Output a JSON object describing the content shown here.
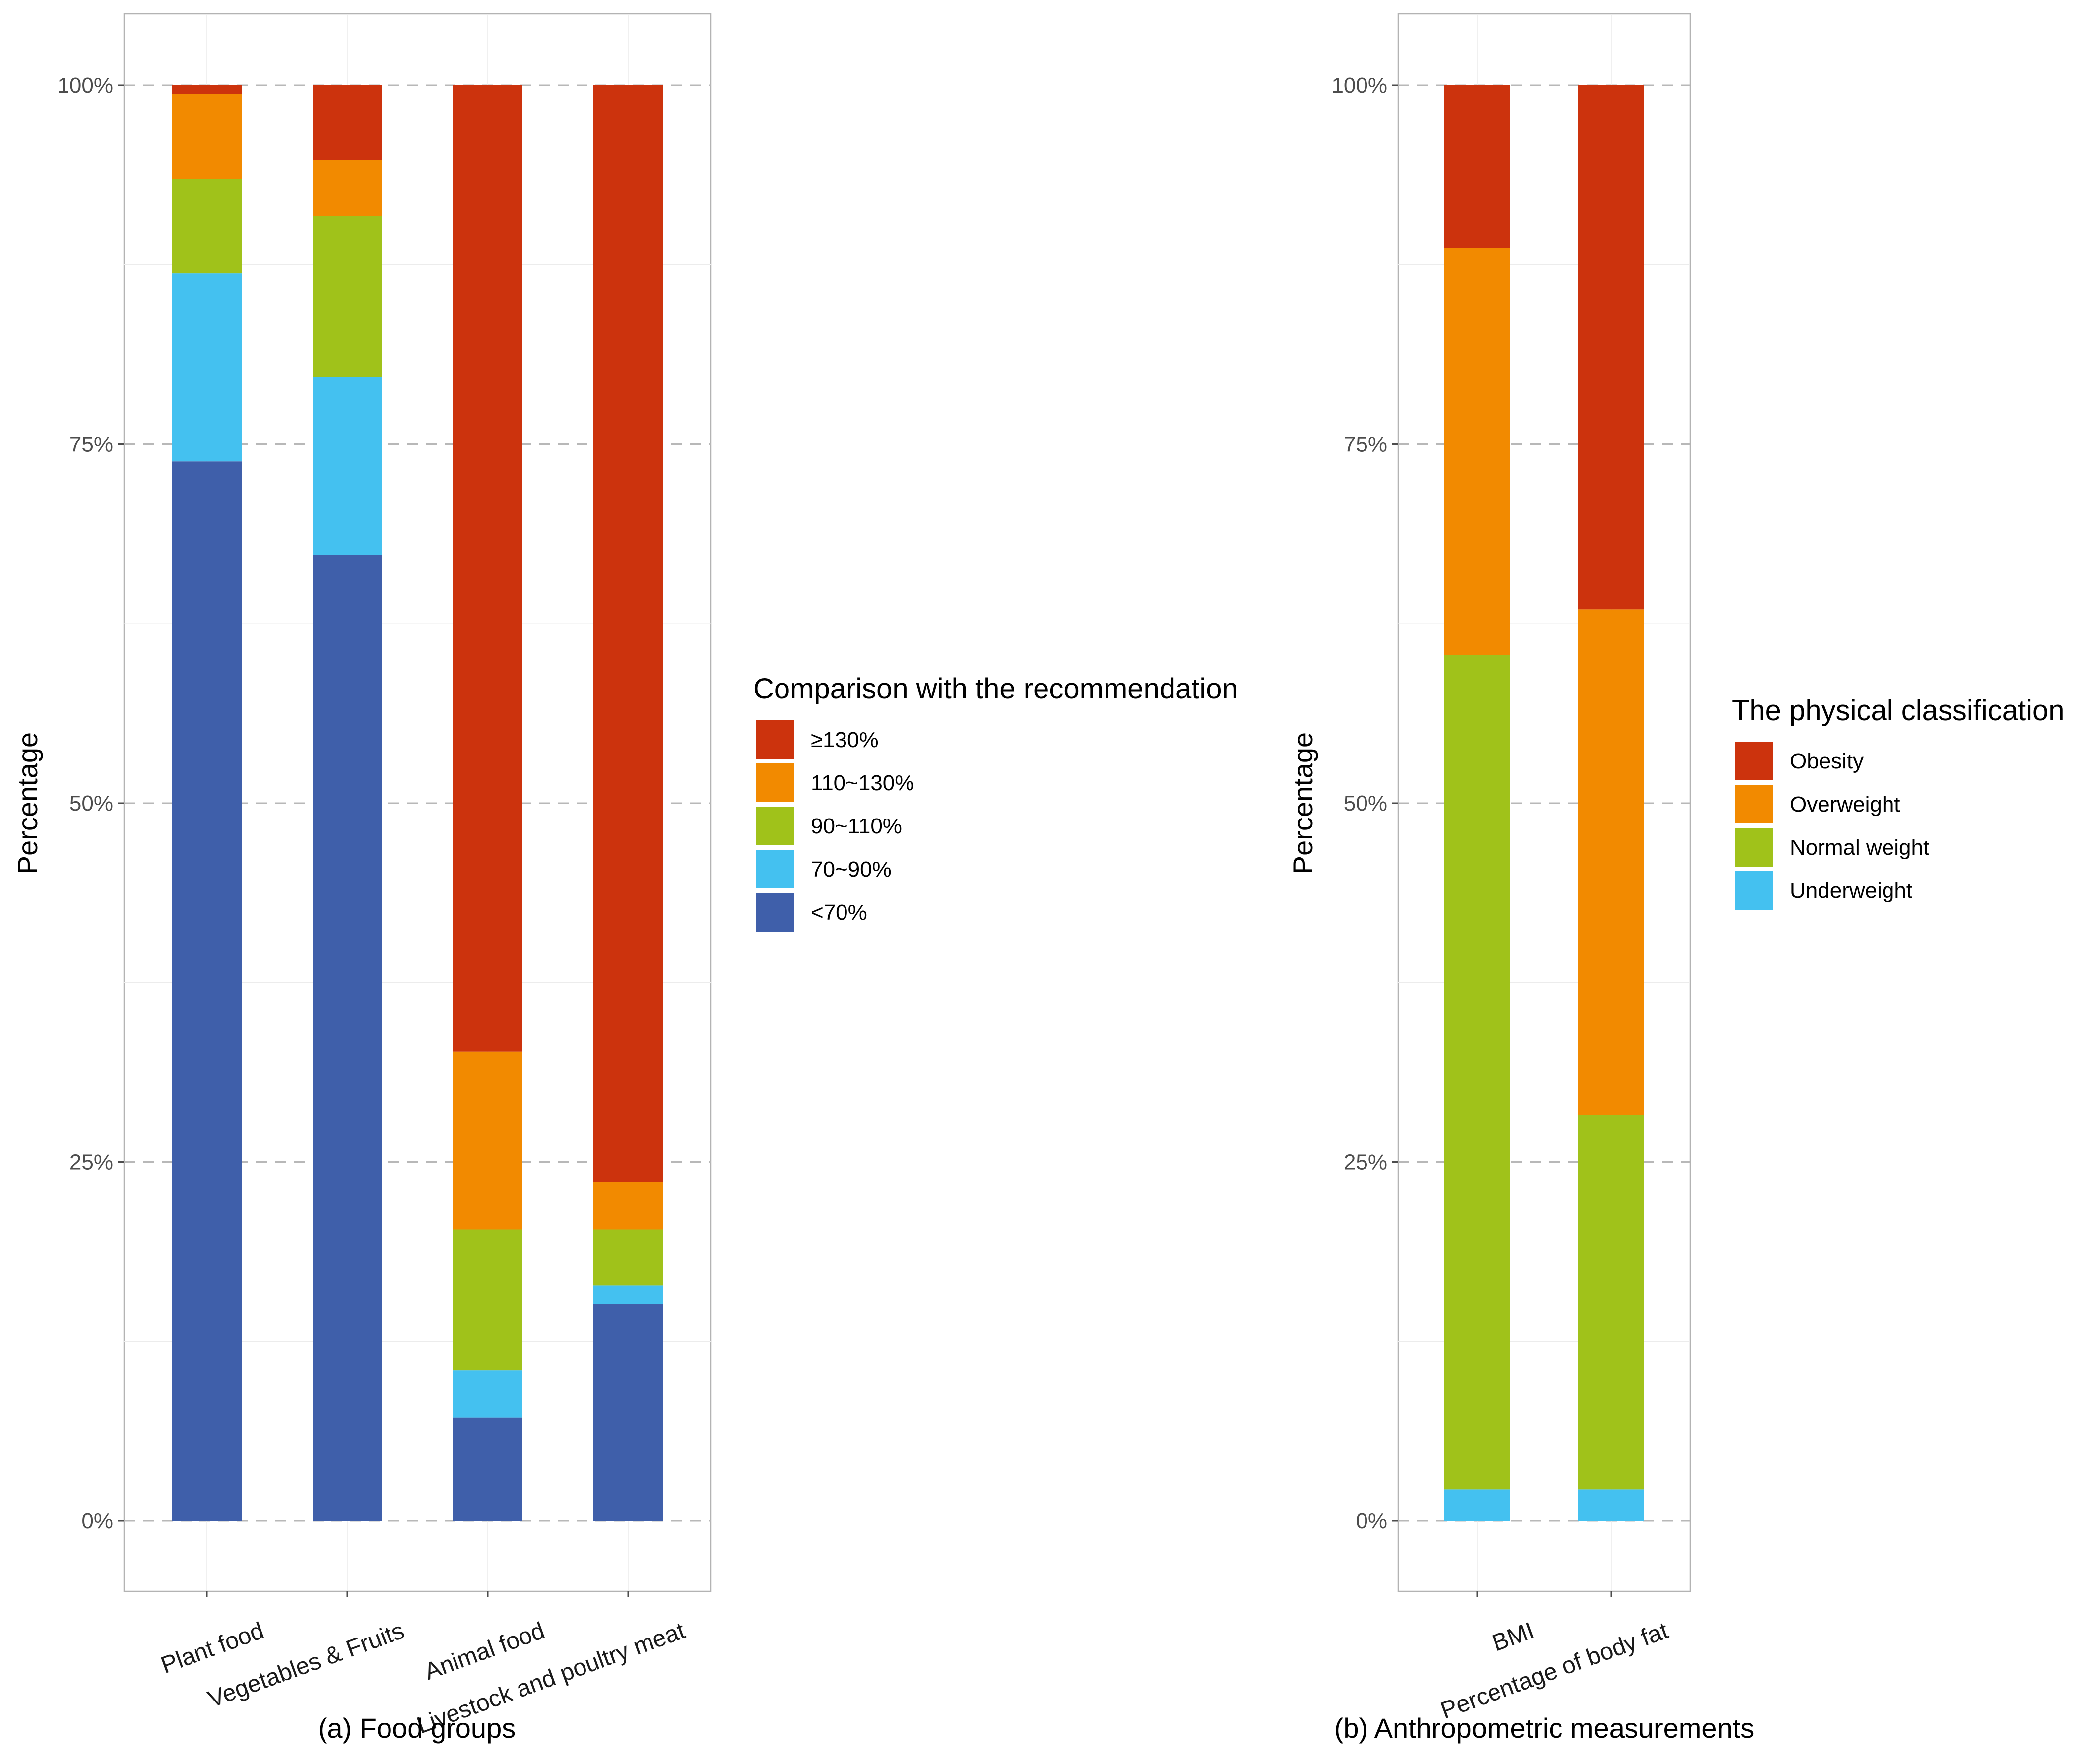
{
  "chart_data": [
    {
      "type": "bar",
      "stacked": true,
      "caption": "(a) Food groups",
      "ylabel": "Percentage",
      "ylim": [
        0,
        100
      ],
      "yticks": [
        "0%",
        "25%",
        "50%",
        "75%",
        "100%"
      ],
      "grid": "dashed horizontal",
      "legend": {
        "title": "Comparison with the recommendation",
        "placement": "right",
        "entries": [
          "≥130%",
          "110~130%",
          "90~110%",
          "70~90%",
          "<70%"
        ]
      },
      "categories": [
        "Plant food",
        "Vegetables & Fruits",
        "Animal food",
        "Livestock and poultry meat"
      ],
      "series": [
        {
          "name": "<70%",
          "color": "#3f5faa",
          "values": [
            73.8,
            67.3,
            7.2,
            15.1
          ]
        },
        {
          "name": "70~90%",
          "color": "#44c1f0",
          "values": [
            13.1,
            12.4,
            3.3,
            1.3
          ]
        },
        {
          "name": "90~110%",
          "color": "#a0c21a",
          "values": [
            6.6,
            11.2,
            9.8,
            3.9
          ]
        },
        {
          "name": "110~130%",
          "color": "#f28a00",
          "values": [
            5.9,
            3.9,
            12.4,
            3.3
          ]
        },
        {
          "name": "≥130%",
          "color": "#cc330d",
          "values": [
            0.6,
            5.2,
            67.3,
            76.4
          ]
        }
      ]
    },
    {
      "type": "bar",
      "stacked": true,
      "caption": "(b) Anthropometric measurements",
      "ylabel": "Percentage",
      "ylim": [
        0,
        100
      ],
      "yticks": [
        "0%",
        "25%",
        "50%",
        "75%",
        "100%"
      ],
      "grid": "dashed horizontal",
      "legend": {
        "title": "The physical classification",
        "placement": "right",
        "entries": [
          "Obesity",
          "Overweight",
          "Normal weight",
          "Underweight"
        ]
      },
      "categories": [
        "BMI",
        "Percentage of body fat"
      ],
      "series": [
        {
          "name": "Underweight",
          "color": "#44c1f0",
          "values": [
            2.2,
            2.2
          ]
        },
        {
          "name": "Normal weight",
          "color": "#a0c21a",
          "values": [
            58.1,
            26.1
          ]
        },
        {
          "name": "Overweight",
          "color": "#f28a00",
          "values": [
            28.4,
            35.2
          ]
        },
        {
          "name": "Obesity",
          "color": "#cc330d",
          "values": [
            11.3,
            36.5
          ]
        }
      ]
    }
  ]
}
